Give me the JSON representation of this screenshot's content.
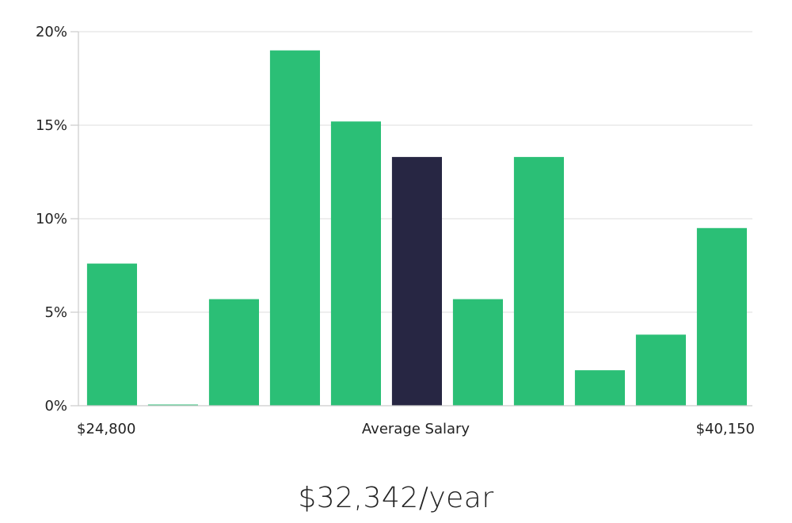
{
  "headline": "$32,342/year",
  "chart_data": {
    "type": "bar",
    "y_ticks": [
      "0%",
      "5%",
      "10%",
      "15%",
      "20%"
    ],
    "y_tick_values": [
      0,
      5,
      10,
      15,
      20
    ],
    "ylim": [
      0,
      20
    ],
    "grid": true,
    "x_labels": {
      "left": "$24,800",
      "center": "Average Salary",
      "right": "$40,150"
    },
    "values": [
      7.6,
      0.05,
      5.7,
      19.0,
      15.2,
      13.3,
      5.7,
      13.3,
      1.9,
      3.8,
      9.5
    ],
    "highlight_index": 5,
    "colors": {
      "bar": "#2bbf76",
      "highlight": "#272643",
      "grid": "#e4e4e4",
      "axis": "#cccccc"
    }
  }
}
